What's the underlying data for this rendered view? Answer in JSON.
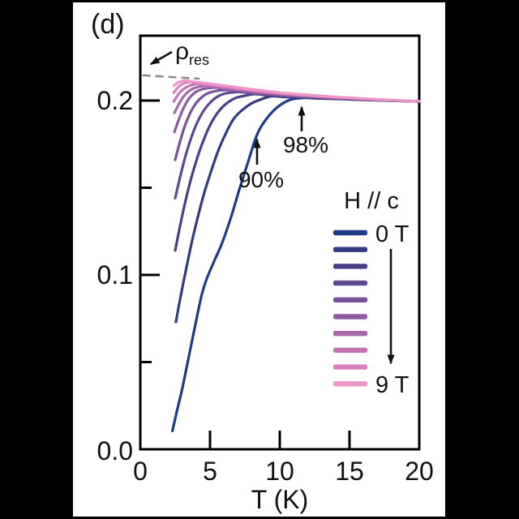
{
  "panel_label": "(d)",
  "annotations": {
    "rho_res_symbol": "ρ",
    "rho_res_sub": "res",
    "pct90": "90%",
    "pct98": "98%"
  },
  "legend": {
    "title": "H // c",
    "first_label": "0 T",
    "last_label": "9 T"
  },
  "axes": {
    "x": {
      "label": "T (K)",
      "ticks": [
        "0",
        "5",
        "10",
        "15",
        "20"
      ]
    },
    "y": {
      "ticks": [
        "0.0",
        "0.1",
        "0.2"
      ]
    }
  },
  "colors": {
    "background": "#000000",
    "panel": "#ffffff",
    "axis": "#000000",
    "dashed_line": "#8c8c8c",
    "text": "#111111"
  },
  "chart_data": {
    "type": "line",
    "title": "Resistive transitions under magnetic field H // c",
    "xlabel": "T (K)",
    "ylabel": "",
    "xlim": [
      0,
      20
    ],
    "ylim": [
      0,
      0.237
    ],
    "x_ticks": [
      0,
      5,
      10,
      15,
      20
    ],
    "y_ticks": [
      0.0,
      0.1,
      0.2
    ],
    "y_minor_ticks": [
      0.05,
      0.15
    ],
    "grid": false,
    "legend_position": "lower right",
    "rho_res_dashed_line": {
      "from": [
        0.15,
        0.2145
      ],
      "to": [
        4.25,
        0.2125
      ]
    },
    "criteria_markers": [
      {
        "label": "90%",
        "T": 8.4,
        "rho": 0.18
      },
      {
        "label": "98%",
        "T": 11.6,
        "rho": 0.202
      }
    ],
    "envelope": [
      [
        2.4,
        0.2122
      ],
      [
        3,
        0.2116
      ],
      [
        4,
        0.2106
      ],
      [
        5,
        0.2096
      ],
      [
        6,
        0.2086
      ],
      [
        7,
        0.2075
      ],
      [
        8,
        0.2064
      ],
      [
        9,
        0.2055
      ],
      [
        10,
        0.2046
      ],
      [
        11,
        0.2039
      ],
      [
        12,
        0.2032
      ],
      [
        13,
        0.2026
      ],
      [
        14,
        0.2021
      ],
      [
        15,
        0.2016
      ],
      [
        16,
        0.2011
      ],
      [
        17,
        0.2007
      ],
      [
        18,
        0.2003
      ],
      [
        19,
        0.1999
      ],
      [
        20,
        0.1996
      ]
    ],
    "offset_coeff": [
      [
        2,
        0.00045
      ],
      [
        4,
        0.00044
      ],
      [
        6,
        0.00043
      ],
      [
        8,
        0.00038
      ],
      [
        10,
        0.0003
      ],
      [
        12,
        0.0002
      ],
      [
        14,
        0.00012
      ],
      [
        16,
        8e-05
      ],
      [
        18,
        4e-05
      ],
      [
        20,
        1e-05
      ]
    ],
    "series": [
      {
        "name": "0 T",
        "field_T": 0,
        "color": "#1e3c85",
        "knee": 11.7,
        "points": [
          [
            2.3,
            0.0105
          ],
          [
            2.6,
            0.021
          ],
          [
            3.0,
            0.0345
          ],
          [
            3.5,
            0.054
          ],
          [
            3.95,
            0.0715
          ],
          [
            4.4,
            0.0885
          ],
          [
            4.75,
            0.0975
          ],
          [
            5.3,
            0.108
          ],
          [
            5.85,
            0.118
          ],
          [
            6.5,
            0.133
          ],
          [
            7.1,
            0.149
          ],
          [
            7.7,
            0.164
          ],
          [
            8.35,
            0.18
          ],
          [
            9.0,
            0.189
          ],
          [
            9.8,
            0.196
          ],
          [
            10.7,
            0.2003
          ],
          [
            11.7,
            0.2015
          ]
        ]
      },
      {
        "name": "1 T",
        "field_T": 1,
        "color": "#343a80",
        "knee": 9.4,
        "points": [
          [
            2.55,
            0.073
          ],
          [
            2.9,
            0.088
          ],
          [
            3.3,
            0.104
          ],
          [
            3.7,
            0.119
          ],
          [
            4.15,
            0.134
          ],
          [
            4.6,
            0.1475
          ],
          [
            5.1,
            0.16
          ],
          [
            5.6,
            0.1715
          ],
          [
            6.15,
            0.1815
          ],
          [
            6.7,
            0.1895
          ],
          [
            7.3,
            0.1945
          ],
          [
            8.0,
            0.1985
          ],
          [
            8.7,
            0.2008
          ],
          [
            9.4,
            0.2025
          ]
        ]
      },
      {
        "name": "2 T",
        "field_T": 2,
        "color": "#4a3e88",
        "knee": 8.2,
        "points": [
          [
            2.5,
            0.114
          ],
          [
            2.85,
            0.128
          ],
          [
            3.2,
            0.141
          ],
          [
            3.6,
            0.154
          ],
          [
            4.0,
            0.165
          ],
          [
            4.45,
            0.1755
          ],
          [
            4.95,
            0.185
          ],
          [
            5.5,
            0.1925
          ],
          [
            6.1,
            0.1978
          ],
          [
            6.75,
            0.2012
          ],
          [
            7.45,
            0.2027
          ],
          [
            8.2,
            0.2037
          ]
        ]
      },
      {
        "name": "3 T",
        "field_T": 3,
        "color": "#5f488f",
        "knee": 7.2,
        "points": [
          [
            2.5,
            0.144
          ],
          [
            2.85,
            0.156
          ],
          [
            3.2,
            0.167
          ],
          [
            3.6,
            0.1775
          ],
          [
            4.0,
            0.186
          ],
          [
            4.45,
            0.193
          ],
          [
            4.95,
            0.1983
          ],
          [
            5.5,
            0.2021
          ],
          [
            6.1,
            0.2041
          ],
          [
            6.65,
            0.2047
          ],
          [
            7.2,
            0.2049
          ]
        ]
      },
      {
        "name": "4 T",
        "field_T": 4,
        "color": "#785198",
        "knee": 6.3,
        "points": [
          [
            2.5,
            0.166
          ],
          [
            2.85,
            0.1765
          ],
          [
            3.2,
            0.1855
          ],
          [
            3.6,
            0.1932
          ],
          [
            4.0,
            0.1985
          ],
          [
            4.45,
            0.2022
          ],
          [
            4.95,
            0.2045
          ],
          [
            5.6,
            0.2057
          ],
          [
            6.3,
            0.2061
          ]
        ]
      },
      {
        "name": "5 T",
        "field_T": 5,
        "color": "#905ca1",
        "knee": 5.5,
        "points": [
          [
            2.45,
            0.182
          ],
          [
            2.8,
            0.19
          ],
          [
            3.15,
            0.1965
          ],
          [
            3.5,
            0.2012
          ],
          [
            3.9,
            0.2045
          ],
          [
            4.35,
            0.2063
          ],
          [
            4.9,
            0.2071
          ],
          [
            5.5,
            0.2074
          ]
        ]
      },
      {
        "name": "6 T",
        "field_T": 6,
        "color": "#a767ab",
        "knee": 4.8,
        "points": [
          [
            2.45,
            0.193
          ],
          [
            2.8,
            0.1985
          ],
          [
            3.15,
            0.2028
          ],
          [
            3.55,
            0.2058
          ],
          [
            4.0,
            0.2075
          ],
          [
            4.4,
            0.2082
          ],
          [
            4.8,
            0.2085
          ]
        ]
      },
      {
        "name": "7 T",
        "field_T": 7,
        "color": "#c074b4",
        "knee": 4.2,
        "points": [
          [
            2.4,
            0.1995
          ],
          [
            2.75,
            0.2038
          ],
          [
            3.1,
            0.2066
          ],
          [
            3.5,
            0.2084
          ],
          [
            3.85,
            0.2092
          ],
          [
            4.2,
            0.2095
          ]
        ]
      },
      {
        "name": "8 T",
        "field_T": 8,
        "color": "#d983be",
        "knee": 3.6,
        "points": [
          [
            2.4,
            0.2045
          ],
          [
            2.7,
            0.2075
          ],
          [
            3.0,
            0.2094
          ],
          [
            3.3,
            0.2103
          ],
          [
            3.6,
            0.2106
          ]
        ]
      },
      {
        "name": "9 T",
        "field_T": 9,
        "color": "#f095c8",
        "knee": 3.2,
        "points": [
          [
            2.4,
            0.2085
          ],
          [
            2.65,
            0.2101
          ],
          [
            2.9,
            0.2109
          ],
          [
            3.2,
            0.2114
          ]
        ]
      }
    ]
  }
}
